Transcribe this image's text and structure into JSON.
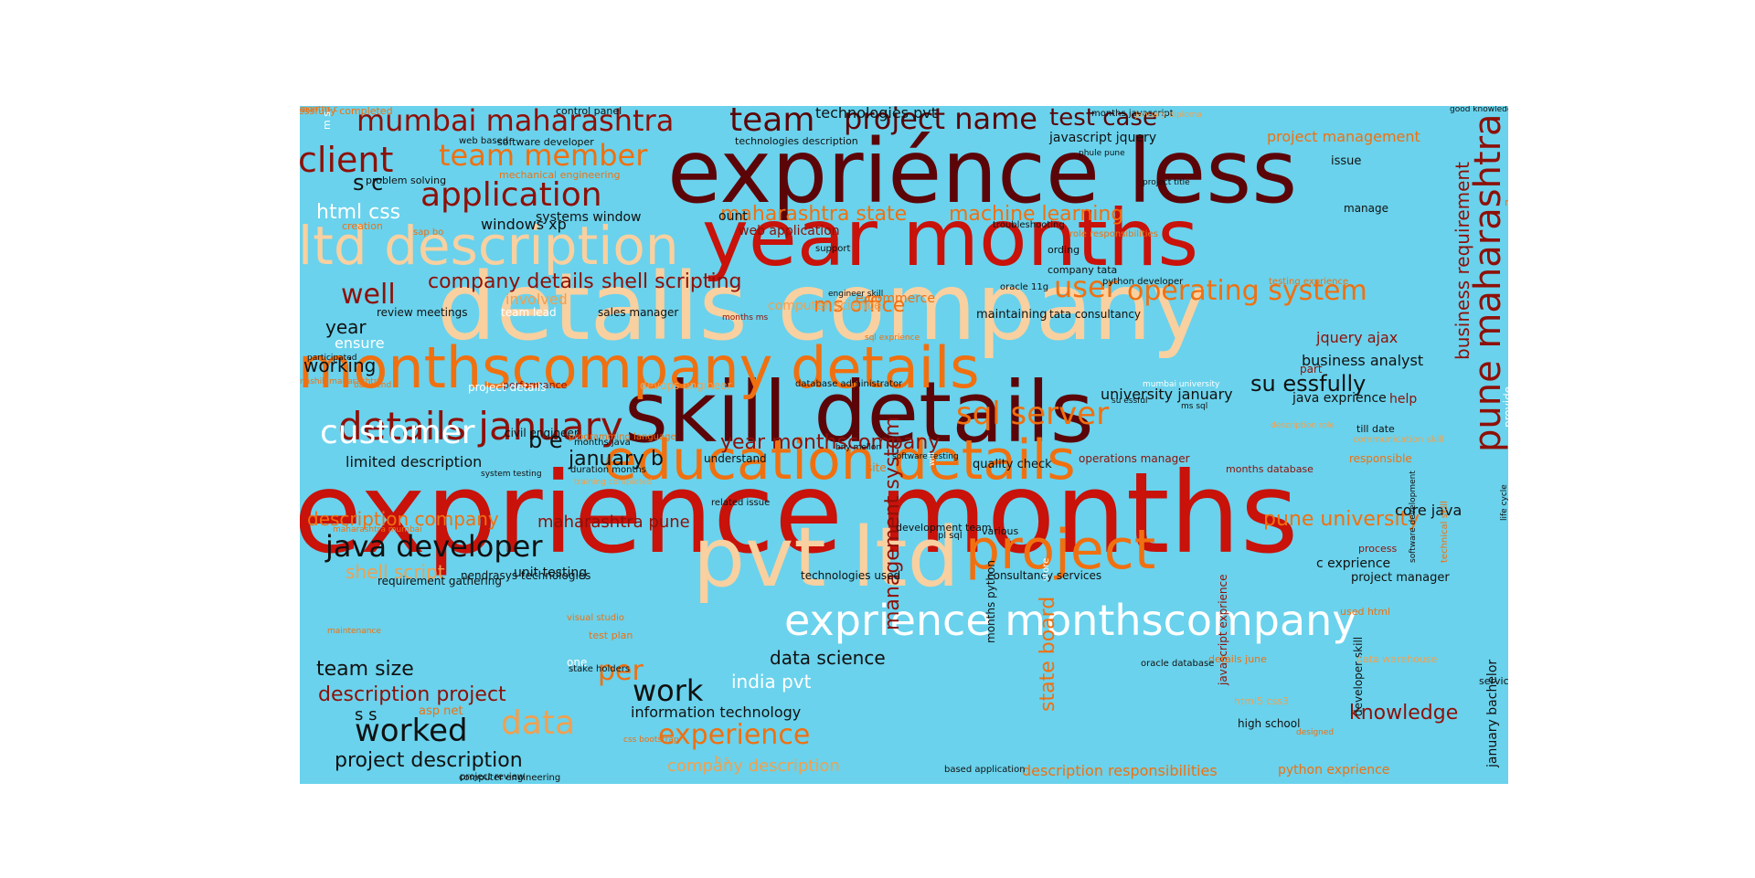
{
  "wordcloud": {
    "background": "#6ad2ec",
    "palette": {
      "dark": "#5c0508",
      "red": "#c8120a",
      "orange": "#f07010",
      "peach": "#f9d0a0",
      "white": "#ffffff",
      "black": "#111111",
      "brown": "#8e1008",
      "lightorange": "#f0a050"
    },
    "words": [
      {
        "text": "expriénce less",
        "size": 96,
        "color": "dark"
      },
      {
        "text": "year months",
        "size": 86,
        "color": "red"
      },
      {
        "text": "details company",
        "size": 102,
        "color": "peach"
      },
      {
        "text": "skill details",
        "size": 92,
        "color": "dark"
      },
      {
        "text": "exprience months",
        "size": 122,
        "color": "red"
      },
      {
        "text": "pvt ltd",
        "size": 90,
        "color": "peach"
      },
      {
        "text": "project",
        "size": 60,
        "color": "orange"
      },
      {
        "text": "monthscompany details",
        "size": 62,
        "color": "orange"
      },
      {
        "text": "ltd description",
        "size": 58,
        "color": "peach"
      },
      {
        "text": "education details",
        "size": 60,
        "color": "orange"
      },
      {
        "text": "exprience monthscompany",
        "size": 46,
        "color": "white"
      },
      {
        "text": "pune maharashtra",
        "size": 40,
        "color": "brown"
      },
      {
        "text": "details january",
        "size": 42,
        "color": "brown"
      },
      {
        "text": "mumbai maharashtra",
        "size": 32,
        "color": "brown"
      },
      {
        "text": "team",
        "size": 36,
        "color": "dark"
      },
      {
        "text": "project name",
        "size": 32,
        "color": "dark"
      },
      {
        "text": "test case",
        "size": 26,
        "color": "dark"
      },
      {
        "text": "client",
        "size": 38,
        "color": "brown"
      },
      {
        "text": "team member",
        "size": 32,
        "color": "orange"
      },
      {
        "text": "application",
        "size": 36,
        "color": "brown"
      },
      {
        "text": "html css",
        "size": 22,
        "color": "white"
      },
      {
        "text": "windows xp",
        "size": 16,
        "color": "black"
      },
      {
        "text": "company details",
        "size": 22,
        "color": "brown"
      },
      {
        "text": "shell scripting",
        "size": 22,
        "color": "brown"
      },
      {
        "text": "well",
        "size": 30,
        "color": "brown"
      },
      {
        "text": "user",
        "size": 32,
        "color": "orange"
      },
      {
        "text": "operating system",
        "size": 30,
        "color": "orange"
      },
      {
        "text": "maharashtra state",
        "size": 22,
        "color": "orange"
      },
      {
        "text": "machine learning",
        "size": 22,
        "color": "orange"
      },
      {
        "text": "ms office",
        "size": 22,
        "color": "orange"
      },
      {
        "text": "sql server",
        "size": 34,
        "color": "orange"
      },
      {
        "text": "customer",
        "size": 36,
        "color": "white"
      },
      {
        "text": "year monthscompany",
        "size": 22,
        "color": "brown"
      },
      {
        "text": "su essfully",
        "size": 24,
        "color": "black"
      },
      {
        "text": "java developer",
        "size": 32,
        "color": "black"
      },
      {
        "text": "shell script",
        "size": 20,
        "color": "lightorange"
      },
      {
        "text": "description company",
        "size": 20,
        "color": "orange"
      },
      {
        "text": "maharashtra pune",
        "size": 18,
        "color": "brown"
      },
      {
        "text": "pune university",
        "size": 22,
        "color": "orange"
      },
      {
        "text": "management system",
        "size": 22,
        "color": "brown"
      },
      {
        "text": "state board",
        "size": 22,
        "color": "orange"
      },
      {
        "text": "team size",
        "size": 22,
        "color": "black"
      },
      {
        "text": "per",
        "size": 30,
        "color": "orange"
      },
      {
        "text": "data science",
        "size": 20,
        "color": "black"
      },
      {
        "text": "india pvt",
        "size": 20,
        "color": "white"
      },
      {
        "text": "work",
        "size": 32,
        "color": "black"
      },
      {
        "text": "description project",
        "size": 22,
        "color": "brown"
      },
      {
        "text": "worked",
        "size": 34,
        "color": "black"
      },
      {
        "text": "data",
        "size": 36,
        "color": "lightorange"
      },
      {
        "text": "experience",
        "size": 30,
        "color": "orange"
      },
      {
        "text": "knowledge",
        "size": 22,
        "color": "brown"
      },
      {
        "text": "project description",
        "size": 22,
        "color": "black"
      },
      {
        "text": "company description",
        "size": 18,
        "color": "lightorange"
      },
      {
        "text": "description responsibilities",
        "size": 16,
        "color": "orange"
      },
      {
        "text": "python exprience",
        "size": 14,
        "color": "orange"
      },
      {
        "text": "january b",
        "size": 22,
        "color": "black"
      },
      {
        "text": "b e",
        "size": 24,
        "color": "black"
      },
      {
        "text": "limited description",
        "size": 16,
        "color": "black"
      },
      {
        "text": "year",
        "size": 20,
        "color": "black"
      },
      {
        "text": "working",
        "size": 20,
        "color": "black"
      },
      {
        "text": "s c",
        "size": 24,
        "color": "black"
      },
      {
        "text": "business requirement",
        "size": 20,
        "color": "brown"
      },
      {
        "text": "jquery ajax",
        "size": 16,
        "color": "brown"
      },
      {
        "text": "business analyst",
        "size": 16,
        "color": "black"
      },
      {
        "text": "university january",
        "size": 16,
        "color": "black"
      },
      {
        "text": "java exprience",
        "size": 14,
        "color": "black"
      },
      {
        "text": "core java",
        "size": 16,
        "color": "black"
      },
      {
        "text": "c exprience",
        "size": 14,
        "color": "black"
      },
      {
        "text": "project manager",
        "size": 13,
        "color": "black"
      },
      {
        "text": "project management",
        "size": 16,
        "color": "orange"
      },
      {
        "text": "technologies pvt",
        "size": 16,
        "color": "black"
      },
      {
        "text": "javascript jquery",
        "size": 14,
        "color": "black"
      },
      {
        "text": "unit testing",
        "size": 14,
        "color": "black"
      },
      {
        "text": "nendrasys technologies",
        "size": 12,
        "color": "black"
      },
      {
        "text": "technologies used",
        "size": 12,
        "color": "black"
      },
      {
        "text": "consultancy services",
        "size": 12,
        "color": "black"
      },
      {
        "text": "information technology",
        "size": 16,
        "color": "black"
      },
      {
        "text": "high school",
        "size": 12,
        "color": "black"
      },
      {
        "text": "january bachelor",
        "size": 14,
        "color": "black"
      },
      {
        "text": "developer skill",
        "size": 12,
        "color": "black"
      },
      {
        "text": "javascript exprience",
        "size": 12,
        "color": "brown"
      },
      {
        "text": "months python",
        "size": 12,
        "color": "black"
      },
      {
        "text": "s s",
        "size": 18,
        "color": "black"
      },
      {
        "text": "asp net",
        "size": 13,
        "color": "orange"
      },
      {
        "text": "systems window",
        "size": 14,
        "color": "black"
      },
      {
        "text": "ount",
        "size": 14,
        "color": "black"
      },
      {
        "text": "web application",
        "size": 14,
        "color": "brown"
      },
      {
        "text": "review meetings",
        "size": 12,
        "color": "black"
      },
      {
        "text": "team lead",
        "size": 12,
        "color": "white"
      },
      {
        "text": "sales manager",
        "size": 12,
        "color": "black"
      },
      {
        "text": "involved",
        "size": 16,
        "color": "lightorange"
      },
      {
        "text": "computer science",
        "size": 14,
        "color": "lightorange"
      },
      {
        "text": "e commerce",
        "size": 14,
        "color": "orange"
      },
      {
        "text": "tata consultancy",
        "size": 12,
        "color": "black"
      },
      {
        "text": "maintaining",
        "size": 13,
        "color": "black"
      },
      {
        "text": "ensure",
        "size": 16,
        "color": "white"
      },
      {
        "text": "requirement gathering",
        "size": 12,
        "color": "black"
      },
      {
        "text": "development team",
        "size": 11,
        "color": "black"
      },
      {
        "text": "quality check",
        "size": 13,
        "color": "black"
      },
      {
        "text": "understand",
        "size": 12,
        "color": "black"
      },
      {
        "text": "civil engineer",
        "size": 12,
        "color": "black"
      },
      {
        "text": "control panel",
        "size": 11,
        "color": "black"
      },
      {
        "text": "software developer",
        "size": 11,
        "color": "black"
      },
      {
        "text": "technologies description",
        "size": 11,
        "color": "black"
      },
      {
        "text": "problem solving",
        "size": 11,
        "color": "black"
      },
      {
        "text": "mechanical engineering",
        "size": 11,
        "color": "orange"
      },
      {
        "text": "oracle 11g",
        "size": 10,
        "color": "black"
      },
      {
        "text": "company tata",
        "size": 11,
        "color": "black"
      },
      {
        "text": "python developer",
        "size": 10,
        "color": "black"
      },
      {
        "text": "testing exprience",
        "size": 10,
        "color": "orange"
      },
      {
        "text": "nagpur maharashtra",
        "size": 11,
        "color": "orange"
      },
      {
        "text": "manage",
        "size": 12,
        "color": "black"
      },
      {
        "text": "issue",
        "size": 13,
        "color": "black"
      },
      {
        "text": "responsible",
        "size": 12,
        "color": "orange"
      },
      {
        "text": "help",
        "size": 14,
        "color": "brown"
      },
      {
        "text": "till date",
        "size": 11,
        "color": "black"
      },
      {
        "text": "process",
        "size": 11,
        "color": "brown"
      },
      {
        "text": "operations manager",
        "size": 12,
        "color": "brown"
      },
      {
        "text": "months database",
        "size": 11,
        "color": "brown"
      },
      {
        "text": "performance",
        "size": 11,
        "color": "brown"
      },
      {
        "text": "devops engineer",
        "size": 12,
        "color": "lightorange"
      },
      {
        "text": "project details",
        "size": 12,
        "color": "white"
      },
      {
        "text": "programming language",
        "size": 10,
        "color": "orange"
      },
      {
        "text": "details june",
        "size": 11,
        "color": "orange"
      },
      {
        "text": "data warehouse",
        "size": 11,
        "color": "lightorange"
      },
      {
        "text": "html5 css3",
        "size": 11,
        "color": "lightorange"
      },
      {
        "text": "oracle database",
        "size": 10,
        "color": "black"
      },
      {
        "text": "based application",
        "size": 10,
        "color": "black"
      },
      {
        "text": "project review",
        "size": 10,
        "color": "black"
      },
      {
        "text": "computer engineering",
        "size": 10,
        "color": "black"
      },
      {
        "text": "visual studio",
        "size": 10,
        "color": "orange"
      },
      {
        "text": "test plan",
        "size": 11,
        "color": "orange"
      },
      {
        "text": "one",
        "size": 12,
        "color": "white"
      },
      {
        "text": "stake holders",
        "size": 10,
        "color": "black"
      },
      {
        "text": "ltd skill",
        "size": 16,
        "color": "orange"
      },
      {
        "text": "services description",
        "size": 11,
        "color": "black"
      },
      {
        "text": "part",
        "size": 12,
        "color": "brown"
      },
      {
        "text": "database administrator",
        "size": 10,
        "color": "black"
      },
      {
        "text": "site",
        "size": 12,
        "color": "orange"
      },
      {
        "text": "pl sql",
        "size": 10,
        "color": "black"
      },
      {
        "text": "various",
        "size": 11,
        "color": "black"
      },
      {
        "text": "store",
        "size": 10,
        "color": "white"
      },
      {
        "text": "months javascript",
        "size": 10,
        "color": "black"
      },
      {
        "text": "essfully completed",
        "size": 11,
        "color": "orange"
      },
      {
        "text": "related issue",
        "size": 10,
        "color": "black"
      },
      {
        "text": "role responsibilities",
        "size": 10,
        "color": "orange"
      },
      {
        "text": "ording",
        "size": 11,
        "color": "black"
      },
      {
        "text": "sap bo",
        "size": 10,
        "color": "orange"
      },
      {
        "text": "creation",
        "size": 11,
        "color": "orange"
      },
      {
        "text": "web based",
        "size": 10,
        "color": "black"
      },
      {
        "text": "support",
        "size": 10,
        "color": "black"
      },
      {
        "text": "troubleshooting",
        "size": 10,
        "color": "black"
      },
      {
        "text": "phule pune",
        "size": 9,
        "color": "black"
      },
      {
        "text": "project title",
        "size": 9,
        "color": "black"
      },
      {
        "text": "good knowledge",
        "size": 9,
        "color": "black"
      },
      {
        "text": "engineer skill",
        "size": 9,
        "color": "black"
      },
      {
        "text": "back end",
        "size": 9,
        "color": "orange"
      },
      {
        "text": "participated",
        "size": 9,
        "color": "black"
      },
      {
        "text": "bny mellon",
        "size": 9,
        "color": "black"
      },
      {
        "text": "months java",
        "size": 10,
        "color": "black"
      },
      {
        "text": "duration months",
        "size": 10,
        "color": "black"
      },
      {
        "text": "software testing",
        "size": 9,
        "color": "black"
      },
      {
        "text": "system testing",
        "size": 9,
        "color": "black"
      },
      {
        "text": "maintenance",
        "size": 9,
        "color": "orange"
      },
      {
        "text": "used html",
        "size": 11,
        "color": "orange"
      },
      {
        "text": "designed",
        "size": 9,
        "color": "orange"
      },
      {
        "text": "will",
        "size": 9,
        "color": "white"
      },
      {
        "text": "software development",
        "size": 9,
        "color": "black"
      },
      {
        "text": "life cycle",
        "size": 9,
        "color": "black"
      },
      {
        "text": "provide",
        "size": 12,
        "color": "white"
      },
      {
        "text": "technical skill",
        "size": 10,
        "color": "orange"
      },
      {
        "text": "communication skill",
        "size": 10,
        "color": "lightorange"
      },
      {
        "text": "mumbai university",
        "size": 9,
        "color": "white"
      },
      {
        "text": "ms sql",
        "size": 9,
        "color": "black"
      },
      {
        "text": "su essful",
        "size": 9,
        "color": "black"
      },
      {
        "text": "sql exprience",
        "size": 9,
        "color": "orange"
      },
      {
        "text": "months ms",
        "size": 9,
        "color": "brown"
      },
      {
        "text": "january diploma",
        "size": 9,
        "color": "lightorange"
      },
      {
        "text": "training completed",
        "size": 9,
        "color": "lightorange"
      },
      {
        "text": "maharashtra mumbai",
        "size": 9,
        "color": "orange"
      },
      {
        "text": "css bootstrap",
        "size": 9,
        "color": "orange"
      },
      {
        "text": "description role",
        "size": 9,
        "color": "lightorange"
      },
      {
        "text": "nashik maharashtra",
        "size": 9,
        "color": "orange"
      },
      {
        "text": "m s",
        "size": 11,
        "color": "white"
      },
      {
        "text": "h s",
        "size": 11,
        "color": "lightorange"
      },
      {
        "text": "ess",
        "size": 10,
        "color": "orange"
      },
      {
        "text": "months c",
        "size": 9,
        "color": "orange"
      }
    ]
  }
}
